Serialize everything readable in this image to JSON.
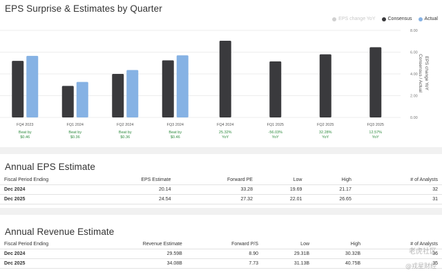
{
  "chart_section": {
    "title": "EPS Surprise & Estimates by Quarter",
    "legend": [
      {
        "label": "EPS change YoY",
        "color": "#d0d0d0",
        "muted": true
      },
      {
        "label": "Consensus",
        "color": "#3a3a3d",
        "muted": false
      },
      {
        "label": "Actual",
        "color": "#86b2e4",
        "muted": false
      }
    ],
    "right_axis_title": "EPS change YoY\nConsensus / Actual"
  },
  "chart_data": {
    "type": "bar",
    "title": "EPS Surprise & Estimates by Quarter",
    "categories": [
      "FQ4 2023",
      "FQ1 2024",
      "FQ2 2024",
      "FQ3 2024",
      "FQ4 2024",
      "FQ1 2025",
      "FQ2 2025",
      "FQ3 2025"
    ],
    "series": [
      {
        "name": "Consensus",
        "color": "#3a3a3d",
        "values": [
          5.2,
          2.9,
          4.0,
          5.25,
          7.05,
          5.15,
          5.8,
          6.45
        ]
      },
      {
        "name": "Actual",
        "color": "#86b2e4",
        "values": [
          5.66,
          3.26,
          4.36,
          5.71,
          null,
          null,
          null,
          null
        ]
      }
    ],
    "annotations": [
      [
        "Beat by",
        "$0.46"
      ],
      [
        "Beat by",
        "$0.36"
      ],
      [
        "Beat by",
        "$0.36"
      ],
      [
        "Beat by",
        "$0.46"
      ],
      [
        "25.32%",
        "YoY"
      ],
      [
        "-56.03%",
        "YoY"
      ],
      [
        "32.28%",
        "YoY"
      ],
      [
        "12.57%",
        "YoY"
      ]
    ],
    "y_ticks": [
      "8.00",
      "6.00",
      "4.00",
      "2.00",
      "0.00"
    ],
    "ylim": [
      0,
      8
    ],
    "ylabel": "EPS change YoY  Consensus / Actual",
    "grid": true
  },
  "eps_estimate": {
    "title": "Annual EPS Estimate",
    "headers": [
      "Fiscal Period Ending",
      "EPS Estimate",
      "Forward PE",
      "Low",
      "High",
      "# of Analysts"
    ],
    "rows": [
      [
        "Dec 2024",
        "20.14",
        "33.28",
        "19.69",
        "21.17",
        "32"
      ],
      [
        "Dec 2025",
        "24.54",
        "27.32",
        "22.01",
        "26.65",
        "31"
      ]
    ]
  },
  "revenue_estimate": {
    "title": "Annual Revenue Estimate",
    "headers": [
      "Fiscal Period Ending",
      "Revenue Estimate",
      "Forward P/S",
      "Low",
      "High",
      "# of Analysts"
    ],
    "rows": [
      [
        "Dec 2024",
        "29.59B",
        "8.90",
        "29.31B",
        "30.32B",
        "36"
      ],
      [
        "Dec 2025",
        "34.08B",
        "7.73",
        "31.13B",
        "40.75B",
        "35"
      ]
    ]
  },
  "watermarks": [
    "老虎社区",
    "@戎星财经"
  ]
}
